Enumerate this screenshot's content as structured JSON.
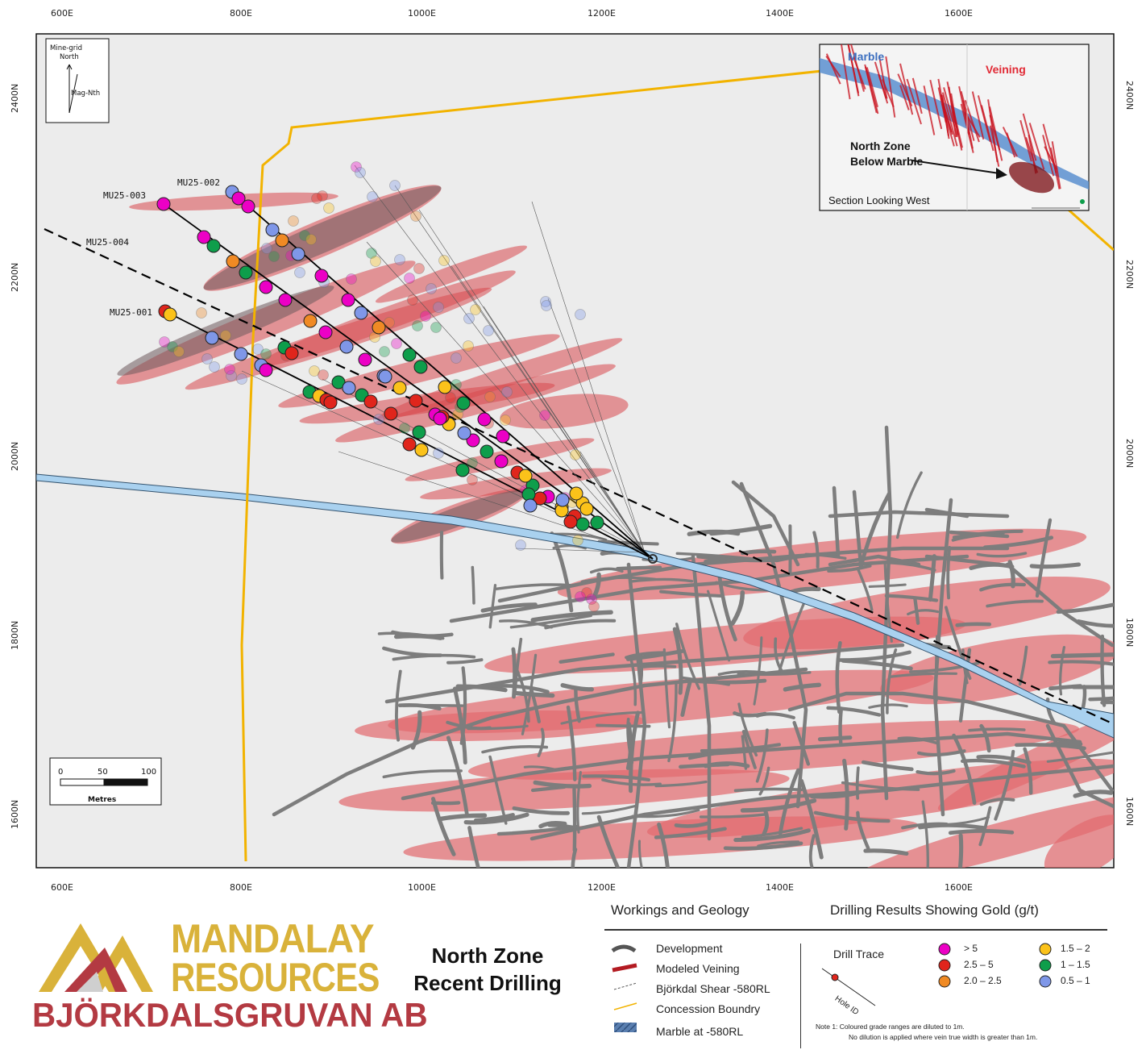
{
  "map": {
    "x_ticks": [
      "600E",
      "800E",
      "1000E",
      "1200E",
      "1400E",
      "1600E"
    ],
    "y_ticks": [
      "2400N",
      "2200N",
      "2000N",
      "1800N",
      "1600N"
    ],
    "north_arrow": {
      "grid_label": "Mine-grid\nNorth",
      "mag_label": "Mag-Nth"
    },
    "scale_bar": {
      "labels": [
        "0",
        "50",
        "100"
      ],
      "unit": "Metres"
    },
    "hole_ids": [
      "MU25-003",
      "MU25-002",
      "MU25-004",
      "MU25-001"
    ],
    "inset": {
      "marble_label": "Marble",
      "veining_label": "Veining",
      "zone_label_1": "North Zone",
      "zone_label_2": "Below Marble",
      "section_label": "Section Looking West"
    },
    "colors": {
      "grade_gt5": "#ec00c5",
      "grade_2_5_5": "#e0251c",
      "grade_2_2_5": "#f08a24",
      "grade_1_5_2": "#fbc21a",
      "grade_1_1_5": "#0e9e4b",
      "grade_0_5_1": "#7f97e8",
      "concession": "#f2b300",
      "veining": "#d9494f",
      "workings": "#7d7d7d",
      "marble": "#9fcbea"
    }
  },
  "brand": {
    "name_line1": "MANDALAY",
    "name_line2": "RESOURCES",
    "subsidiary": "BJÖRKDALSGRUVAN AB",
    "gold": "#d9b23a",
    "red": "#b33a42"
  },
  "title": {
    "line1": "North Zone",
    "line2": "Recent Drilling"
  },
  "legend": {
    "workings_header": "Workings and Geology",
    "drilling_header": "Drilling Results Showing Gold (g/t)",
    "items": [
      "Development",
      "Modeled Veining",
      "Björkdal Shear -580RL",
      "Concession Boundry",
      "Marble at -580RL"
    ],
    "drill_trace": "Drill Trace",
    "hole_id": "Hole ID",
    "grades": [
      "> 5",
      "2.5 – 5",
      "2.0 – 2.5",
      "1.5 – 2",
      "1 – 1.5",
      "0.5 – 1"
    ],
    "note_1": "Note 1:   Coloured grade ranges are diluted to 1m.",
    "note_2": "No dilution is applied where vein true width is greater than 1m."
  }
}
